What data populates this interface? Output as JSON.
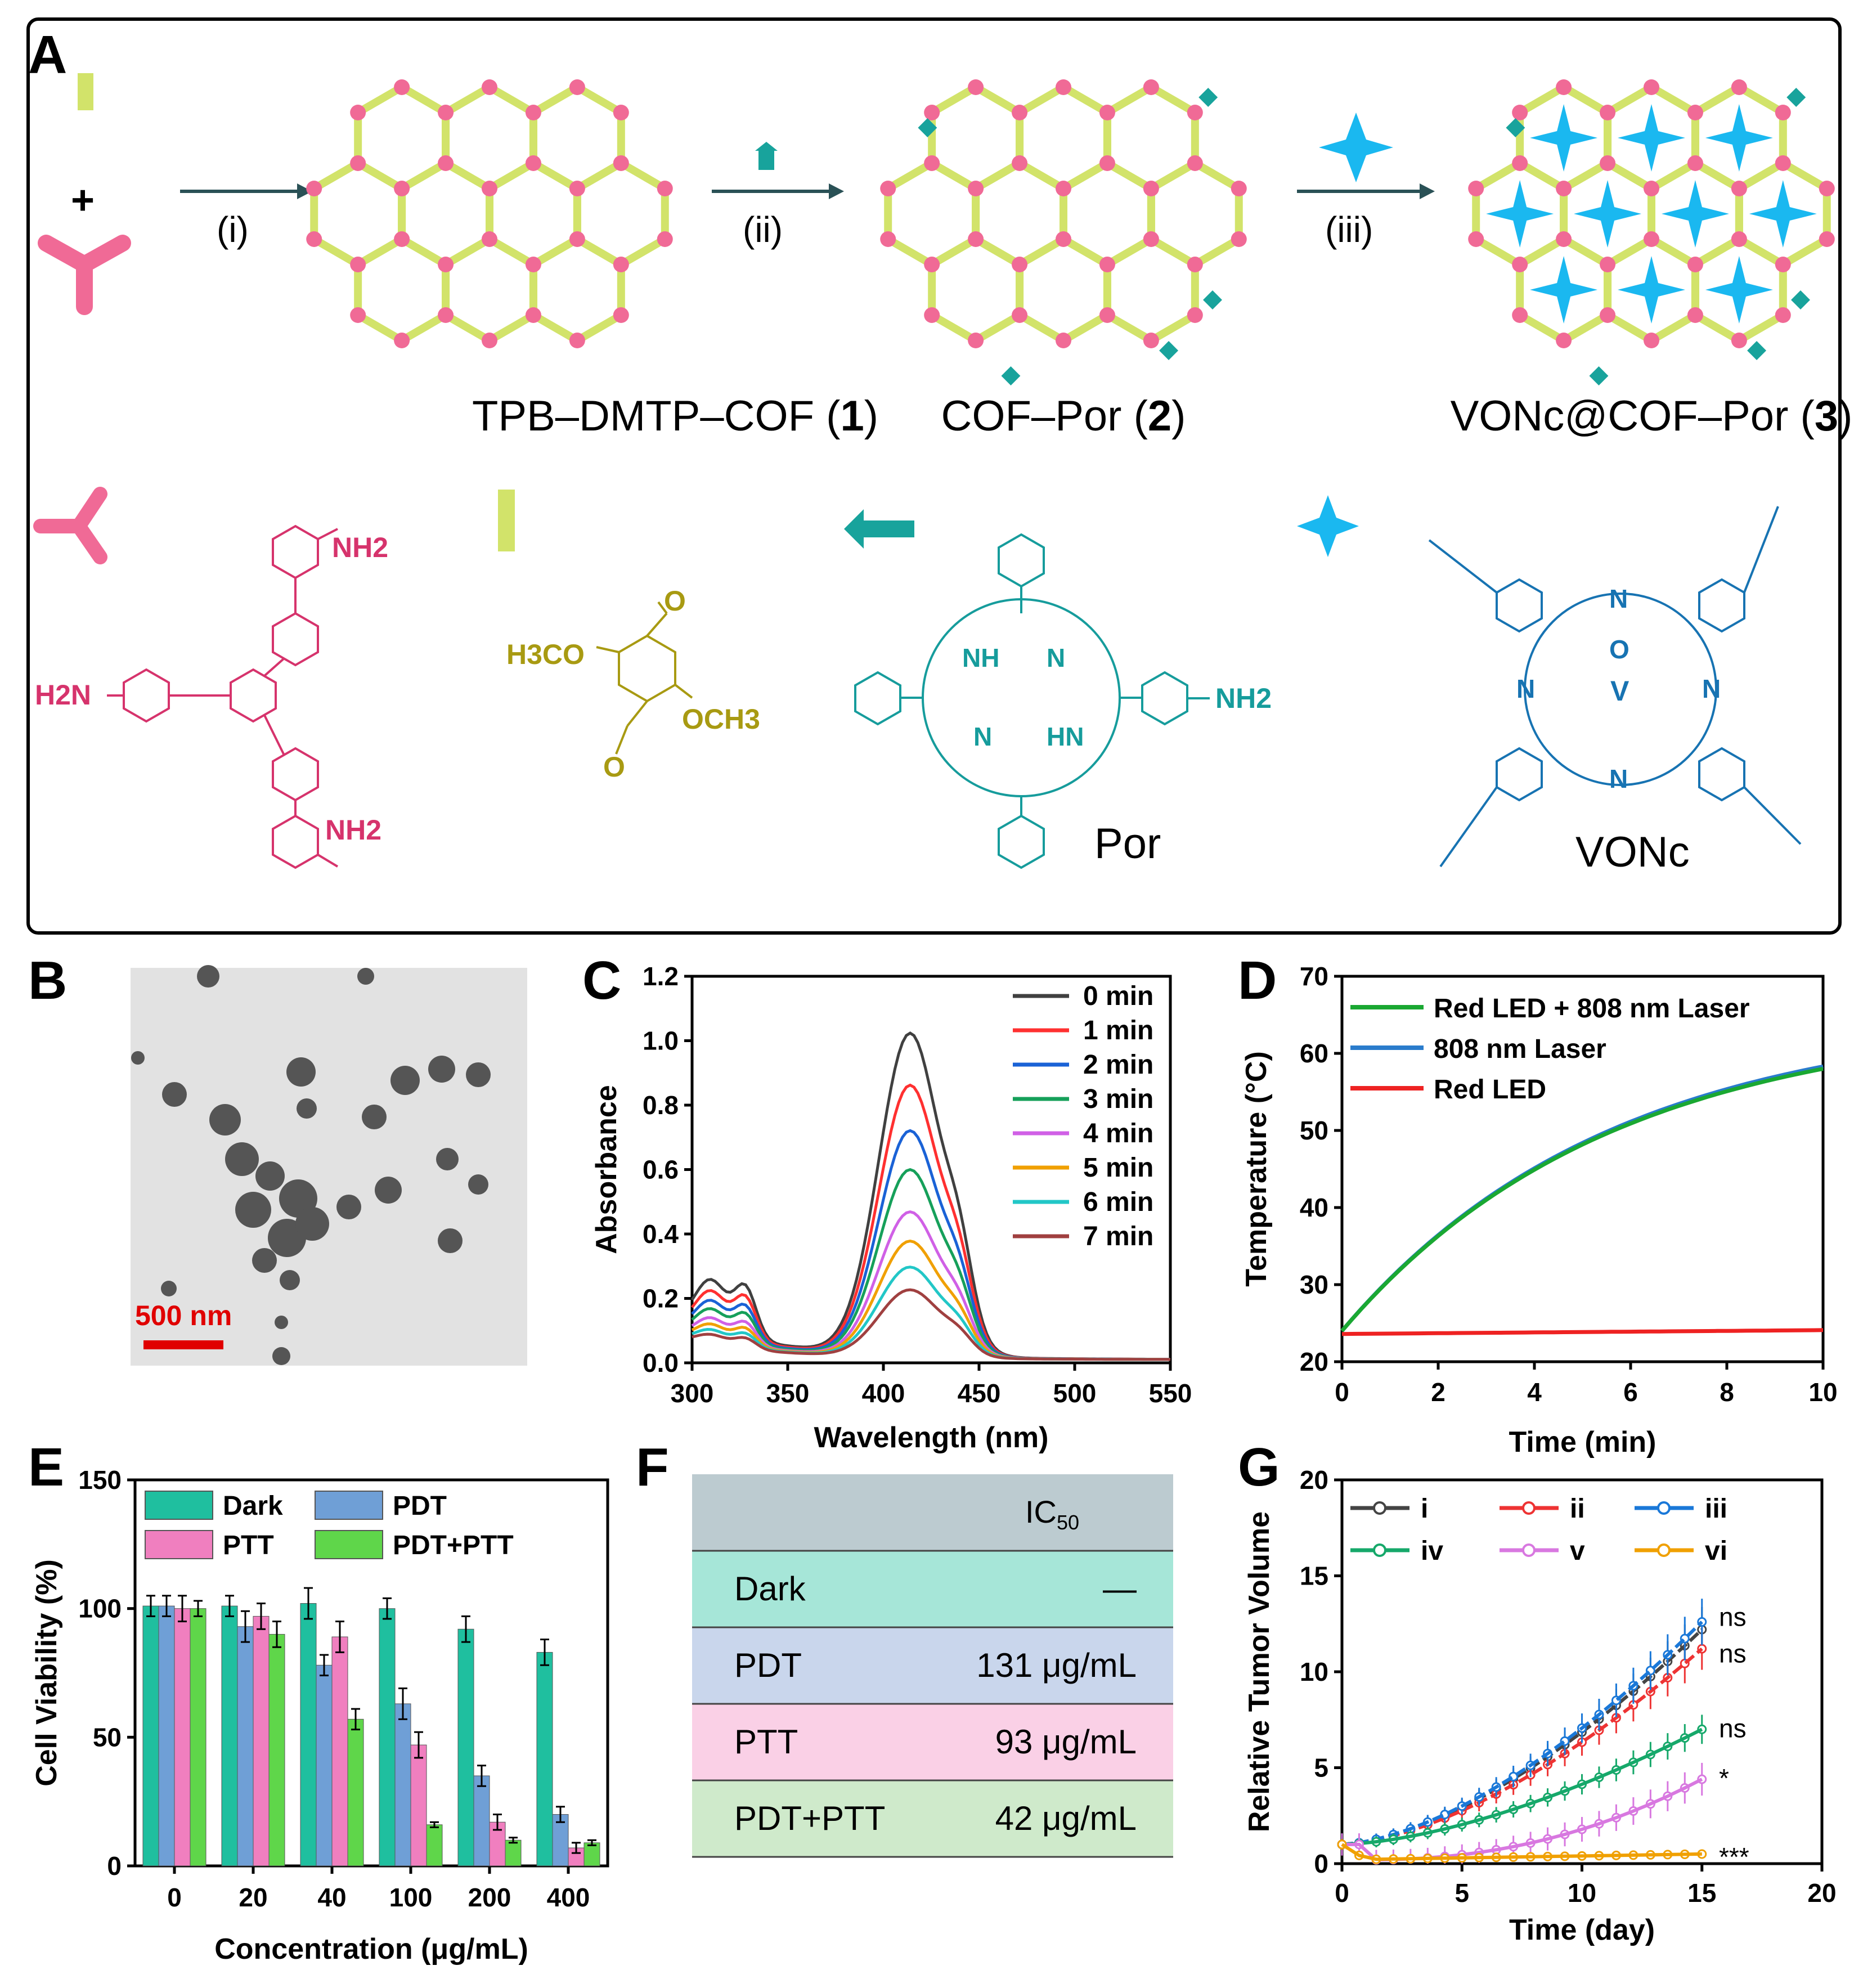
{
  "panels": {
    "a": "A",
    "b": "B",
    "c": "C",
    "d": "D",
    "e": "E",
    "f": "F",
    "g": "G"
  },
  "panelA": {
    "plus": "+",
    "steps": [
      "(i)",
      "(ii)",
      "(iii)"
    ],
    "cof1": {
      "name": "TPB–DMTP–COF (",
      "num": "1",
      "close": ")"
    },
    "cof2": {
      "name": "COF–Por (",
      "num": "2",
      "close": ")"
    },
    "cof3": {
      "name": "VONc@COF–Por (",
      "num": "3",
      "close": ")"
    },
    "tpb": {
      "nh2_top": "NH2",
      "nh2_left": "H2N",
      "nh2_bottom": "NH2"
    },
    "dmtp": {
      "o_top": "O",
      "h3co": "H3CO",
      "och3": "OCH3",
      "o_bottom": "O"
    },
    "por": {
      "nh": "NH",
      "n1": "N",
      "n2": "N",
      "hn": "HN",
      "nh2": "NH2",
      "label": "Por"
    },
    "vonc": {
      "n": "N",
      "o": "O",
      "v": "V",
      "label": "VONc"
    }
  },
  "panelB": {
    "scale": "500 nm"
  },
  "panelC": {
    "chart_data": {
      "type": "line",
      "xlabel": "Wavelength (nm)",
      "ylabel": "Absorbance",
      "xlim": [
        300,
        550
      ],
      "ylim": [
        0,
        1.2
      ],
      "xticks": [
        "300",
        "350",
        "400",
        "450",
        "500",
        "550"
      ],
      "yticks": [
        "0.0",
        "0.2",
        "0.4",
        "0.6",
        "0.8",
        "1.0",
        "1.2"
      ],
      "peak_nm": 414,
      "series": [
        {
          "name": "0 min",
          "color": "#404040",
          "peak": 1.0
        },
        {
          "name": "1 min",
          "color": "#ff3030",
          "peak": 0.84
        },
        {
          "name": "2 min",
          "color": "#1a62d6",
          "peak": 0.7
        },
        {
          "name": "3 min",
          "color": "#16a05a",
          "peak": 0.58
        },
        {
          "name": "4 min",
          "color": "#d060e6",
          "peak": 0.45
        },
        {
          "name": "5 min",
          "color": "#f0a000",
          "peak": 0.36
        },
        {
          "name": "6 min",
          "color": "#22c7c7",
          "peak": 0.28
        },
        {
          "name": "7 min",
          "color": "#a04040",
          "peak": 0.21
        }
      ]
    }
  },
  "panelD": {
    "chart_data": {
      "type": "line",
      "xlabel": "Time (min)",
      "ylabel": "Temperature (°C)",
      "xlim": [
        0,
        10
      ],
      "ylim": [
        20,
        70
      ],
      "xticks": [
        "0",
        "2",
        "4",
        "6",
        "8",
        "10"
      ],
      "yticks": [
        "20",
        "30",
        "40",
        "50",
        "60",
        "70"
      ],
      "series": [
        {
          "name": "Red LED + 808 nm Laser",
          "color": "#1aa832",
          "start": 24,
          "end": 58
        },
        {
          "name": "808 nm Laser",
          "color": "#2a7ccc",
          "start": 24,
          "end": 58.3
        },
        {
          "name": "Red LED",
          "color": "#ee2222",
          "start": 23.6,
          "end": 24.1
        }
      ]
    }
  },
  "panelE": {
    "chart_data": {
      "type": "bar",
      "xlabel": "Concentration (μg/mL)",
      "ylabel": "Cell Viability (%)",
      "ylim": [
        0,
        150
      ],
      "yticks": [
        "0",
        "50",
        "100",
        "150"
      ],
      "categories": [
        "0",
        "20",
        "40",
        "100",
        "200",
        "400"
      ],
      "series": [
        {
          "name": "Dark",
          "color": "#1fbf9f",
          "values": [
            101,
            101,
            102,
            100,
            92,
            83
          ],
          "err": [
            4,
            4,
            6,
            4,
            5,
            5
          ]
        },
        {
          "name": "PDT",
          "color": "#6f9fd6",
          "values": [
            101,
            93,
            78,
            63,
            35,
            20
          ],
          "err": [
            4,
            6,
            4,
            6,
            4,
            3
          ]
        },
        {
          "name": "PTT",
          "color": "#f07fbf",
          "values": [
            100,
            97,
            89,
            47,
            17,
            7
          ],
          "err": [
            5,
            5,
            6,
            5,
            3,
            2
          ]
        },
        {
          "name": "PDT+PTT",
          "color": "#5fd64a",
          "values": [
            100,
            90,
            57,
            16,
            10,
            9
          ],
          "err": [
            3,
            5,
            4,
            1,
            1,
            1
          ]
        }
      ]
    }
  },
  "panelF": {
    "header": [
      "",
      "IC"
    ],
    "ic_sub": "50",
    "rows": [
      {
        "group": "Dark",
        "value": "—",
        "color": "#a6e6d8"
      },
      {
        "group": "PDT",
        "value": "131 μg/mL",
        "color": "#c9d6ec"
      },
      {
        "group": "PTT",
        "value": "93 μg/mL",
        "color": "#fad0e6"
      },
      {
        "group": "PDT+PTT",
        "value": "42 μg/mL",
        "color": "#cfeacb"
      }
    ],
    "header_color": "#bccbd0"
  },
  "panelG": {
    "chart_data": {
      "type": "line",
      "xlabel": "Time (day)",
      "ylabel": "Relative Tumor Volume",
      "xlim": [
        0,
        20
      ],
      "ylim": [
        0,
        20
      ],
      "xticks": [
        "0",
        "5",
        "10",
        "15",
        "20"
      ],
      "yticks": [
        "0",
        "5",
        "10",
        "15",
        "20"
      ],
      "series": [
        {
          "name": "i",
          "color": "#444444",
          "end": 12.2,
          "sig": "ns"
        },
        {
          "name": "ii",
          "color": "#ee3333",
          "end": 11.2,
          "sig": "ns"
        },
        {
          "name": "iii",
          "color": "#1a78d8",
          "end": 12.6,
          "sig": "ns"
        },
        {
          "name": "iv",
          "color": "#16a86a",
          "end": 7.0,
          "sig": "ns"
        },
        {
          "name": "v",
          "color": "#d878e0",
          "end": 4.4,
          "sig": "*"
        },
        {
          "name": "vi",
          "color": "#f0a000",
          "end": 0.5,
          "sig": "***"
        }
      ],
      "sig_labels": [
        "ns",
        "ns",
        "ns",
        "*",
        "***"
      ]
    }
  }
}
